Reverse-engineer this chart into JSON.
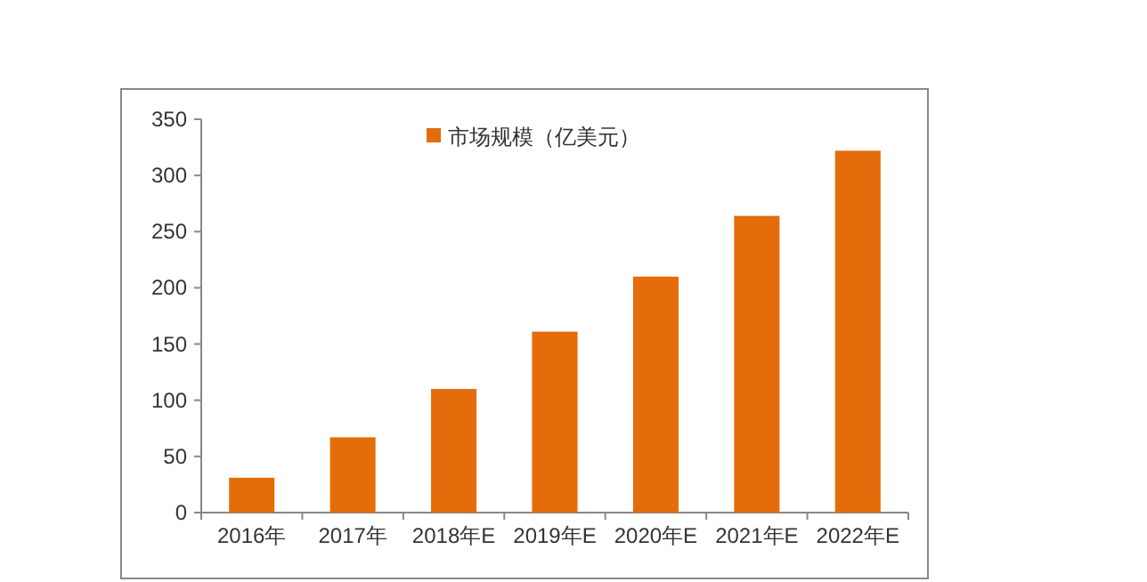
{
  "chart_data": {
    "type": "bar",
    "categories": [
      "2016年",
      "2017年",
      "2018年E",
      "2019年E",
      "2020年E",
      "2021年E",
      "2022年E"
    ],
    "series": [
      {
        "name": "市场规模（亿美元）",
        "color": "#e46c0a",
        "values": [
          31,
          67,
          110,
          161,
          210,
          264,
          322
        ]
      }
    ],
    "ylim": [
      0,
      350
    ],
    "yticks": [
      0,
      50,
      100,
      150,
      200,
      250,
      300,
      350
    ],
    "legend": "top",
    "grid": false
  }
}
